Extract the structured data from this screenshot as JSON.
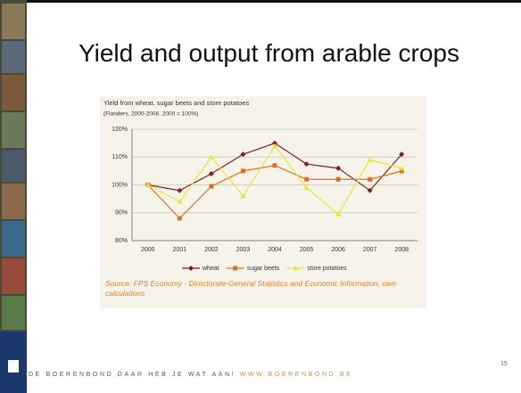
{
  "slide": {
    "title": "Yield and output from arable crops",
    "footer": "DE BOERENBOND DAAR HEB JE WAT AAN!",
    "url": "WWW.BOERENBOND.BE",
    "page_number": "15"
  },
  "chart_data": {
    "type": "line",
    "title": "Yield from wheat, sugar beets and store potatoes",
    "subtitle": "(Flanders, 2000-2008, 2000 = 100%)",
    "source": "Source: FPS Economy - Directorate-General Statistics and Economic Information, own calculations",
    "categories": [
      "2000",
      "2001",
      "2002",
      "2003",
      "2004",
      "2005",
      "2006",
      "2007",
      "2008"
    ],
    "ylim": [
      80,
      120
    ],
    "yticks": [
      {
        "value": 80,
        "label": "80%"
      },
      {
        "value": 90,
        "label": "90%"
      },
      {
        "value": 100,
        "label": "100%"
      },
      {
        "value": 110,
        "label": "110%"
      },
      {
        "value": 120,
        "label": "120%"
      }
    ],
    "grid": true,
    "series": [
      {
        "name": "wheat",
        "color": "#7b1f22",
        "marker": "diamond",
        "values": [
          100,
          98,
          104,
          111,
          115,
          107.5,
          106,
          98,
          111
        ]
      },
      {
        "name": "sugar beets",
        "color": "#e2711d",
        "marker": "square",
        "values": [
          100,
          88,
          99.5,
          105,
          107,
          102,
          102,
          102,
          105
        ]
      },
      {
        "name": "store potatoes",
        "color": "#ede23a",
        "marker": "triangle",
        "values": [
          100,
          94,
          110,
          96,
          114,
          99,
          89.5,
          109,
          106
        ]
      }
    ]
  }
}
